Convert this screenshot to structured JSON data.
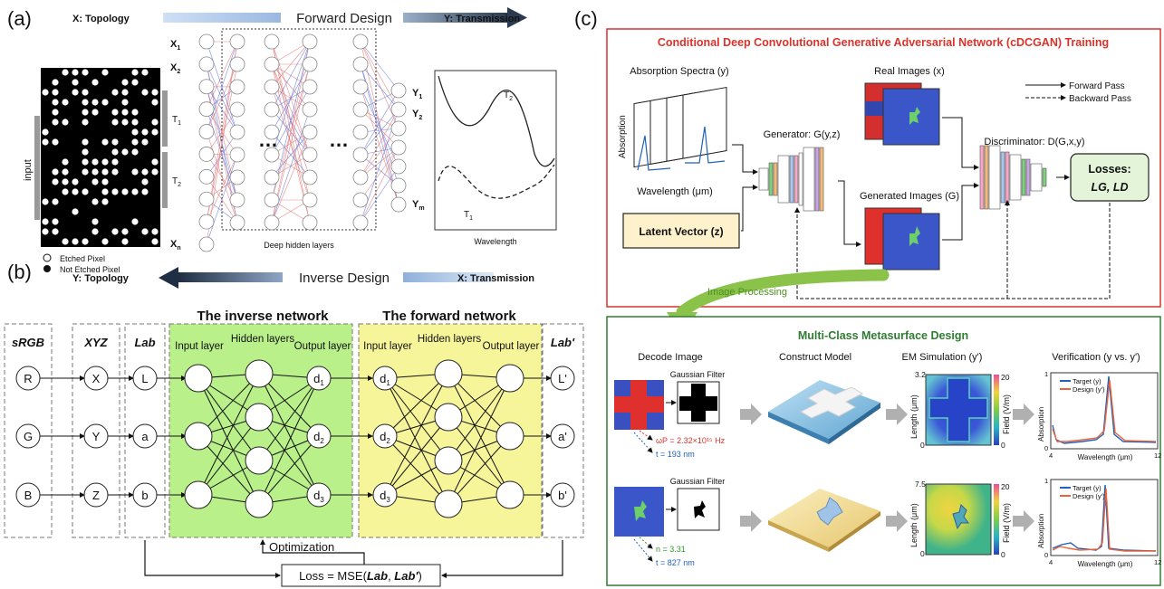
{
  "panel_a": {
    "label": "(a)",
    "x_header": "X: Topology",
    "direction": "Forward Design",
    "y_header": "Y: Transmission",
    "input_label": "input",
    "legend_etched": "Etched Pixel",
    "legend_not_etched": "Not Etched Pixel",
    "t1": "T",
    "t2": "T",
    "sub1": "1",
    "sub2": "2",
    "x1": "X",
    "x2": "X",
    "xn": "X",
    "y1": "Y",
    "y2": "Y",
    "ym": "Y",
    "sub_n": "n",
    "sub_m": "m",
    "ellipsis": "…",
    "hidden_caption": "Deep hidden layers",
    "wavelength": "Wavelength",
    "curve_t2": "T",
    "curve_t1": "T"
  },
  "panel_b": {
    "label": "(b)",
    "y_header": "Y: Topology",
    "direction": "Inverse Design",
    "x_header": "X: Transmission",
    "inverse_title": "The inverse network",
    "forward_title": "The forward network",
    "col_srgb": "sRGB",
    "col_xyz": "XYZ",
    "col_lab": "Lab",
    "col_labp": "Lab'",
    "input_layer": "Input layer",
    "hidden_layers": "Hidden layers",
    "output_layer": "Output layer",
    "srgb_nodes": [
      "R",
      "G",
      "B"
    ],
    "xyz_nodes": [
      "X",
      "Y",
      "Z"
    ],
    "lab_nodes": [
      "L",
      "a",
      "b"
    ],
    "labp_nodes": [
      "L'",
      "a'",
      "b'"
    ],
    "d_letter": "d",
    "d_subs": [
      "1",
      "2",
      "3"
    ],
    "optimization": "Optimization",
    "loss_prefix": "Loss = MSE(",
    "loss_lab": "Lab",
    "loss_sep": ", ",
    "loss_labp": "Lab'",
    "loss_suffix": ")"
  },
  "panel_c": {
    "label": "(c)",
    "training_title": "Conditional Deep Convolutional Generative Adversarial Network (cDCGAN) Training",
    "absorption_spectra": "Absorption Spectra (y)",
    "absorption_axis": "Absorption",
    "wavelength_um": "Wavelength (μm)",
    "real_images": "Real Images (x)",
    "forward_pass": "Forward Pass",
    "backward_pass": "Backward Pass",
    "generator": "Generator: G(y,z)",
    "discriminator": "Discriminator: D(G,x,y)",
    "losses": "Losses:",
    "losses_terms": "LG, LD",
    "generated_images": "Generated Images (G)",
    "latent_vector": "Latent Vector (z)",
    "image_processing": "Image Processing",
    "design_title": "Multi-Class Metasurface Design",
    "decode_image": "Decode Image",
    "construct_model": "Construct Model",
    "em_simulation": "EM Simulation (y')",
    "verification": "Verification (y vs. y')",
    "gaussian_filter_1": "Gaussian Filter",
    "gaussian_filter_2": "Gaussian Filter",
    "row1_param1": "ωP = 2.32×10¹⁵ Hz",
    "row1_param2": "t = 193 nm",
    "row2_param1": "n = 3.31",
    "row2_param2": "t = 827 nm",
    "length_um": "Length (μm)",
    "field_vm": "Field (V/m)",
    "em1_top": "3.2",
    "em1_bottom": "0",
    "em2_top": "7.5",
    "em2_bottom": "0",
    "cbar_top": "20",
    "cbar_bottom": "0",
    "target_legend": "Target (y)",
    "design_legend": "Design (y')",
    "ver_y_top": "1",
    "ver_y_bottom": "0",
    "ver_x_left": "4",
    "ver_x_right": "12",
    "ver_xlabel": "Wavelength (μm)",
    "ver_ylabel": "Absorption"
  },
  "colors": {
    "training_border": "#d9342b",
    "design_border": "#2e7d32",
    "green_arrow": "#8bc34a",
    "target": "#1f5fbf",
    "design": "#e8643a",
    "inverse_fill": "#b9f08a",
    "forward_fill": "#f7f59a",
    "losses_fill": "#e4f4d9",
    "latent_fill": "#fdf2cc"
  }
}
